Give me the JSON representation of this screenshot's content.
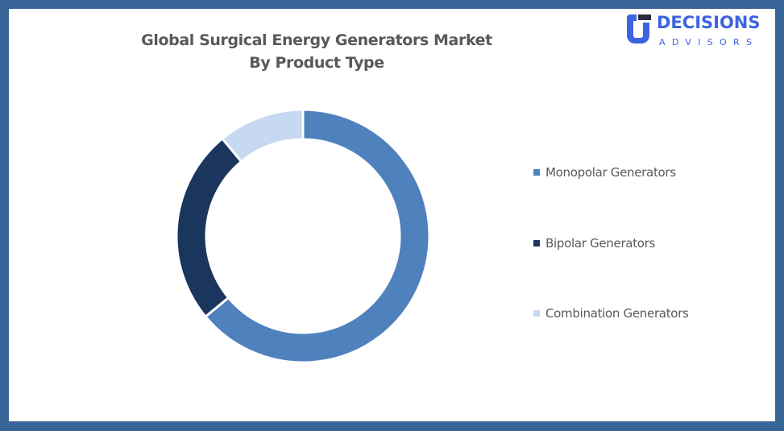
{
  "logo": {
    "name": "DECISIONS",
    "tagline": "ADVISORS",
    "color": "#3d63e0"
  },
  "chart_data": {
    "type": "pie",
    "variant": "donut",
    "title": "Global Surgical Energy Generators Market By Product Type",
    "title_lines": [
      "Global Surgical Energy Generators Market",
      "By Product Type"
    ],
    "categories": [
      "Monopolar Generators",
      "Bipolar Generators",
      "Combination Generators"
    ],
    "values": [
      64,
      25,
      11
    ],
    "unit": "%",
    "colors": [
      "#4f81bd",
      "#1b365d",
      "#c6d9f1"
    ],
    "legend_position": "right",
    "start_angle_deg": 0,
    "direction": "clockwise",
    "data_labels": false
  },
  "frame": {
    "border_color": "#3a6598",
    "background": "#ffffff"
  }
}
